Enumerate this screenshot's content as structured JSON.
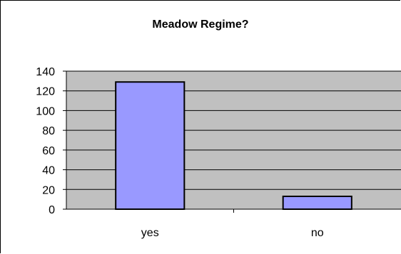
{
  "chart_data": {
    "type": "bar",
    "title": "Meadow Regime?",
    "categories": [
      "yes",
      "no"
    ],
    "values": [
      129,
      13
    ],
    "xlabel": "",
    "ylabel": "",
    "ylim": [
      0,
      140
    ],
    "yticks": [
      0,
      20,
      40,
      60,
      80,
      100,
      120,
      140
    ],
    "grid": true,
    "legend": "none",
    "colors": {
      "bar_fill": "#9999ff",
      "bar_stroke": "#000000",
      "plot_background": "#c0c0c0",
      "gridline": "#000000"
    }
  }
}
